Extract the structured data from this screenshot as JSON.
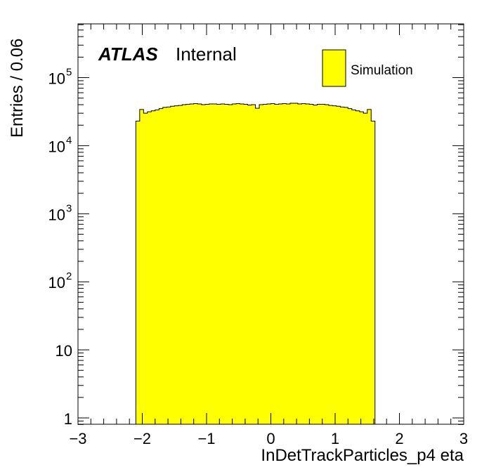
{
  "chart_data": {
    "type": "bar",
    "style": "histogram",
    "xlabel": "InDetTrackParticles_p4 eta",
    "ylabel": "Entries / 0.06",
    "x_ticks": [
      "−3",
      "−2",
      "−1",
      "0",
      "1",
      "2",
      "3"
    ],
    "y_ticks": [
      "1",
      "10",
      "10",
      "10",
      "10",
      "10"
    ],
    "y_tick_exponents": [
      "",
      "",
      "2",
      "3",
      "4",
      "5"
    ],
    "xlim": [
      -3,
      3
    ],
    "ylim": [
      0.8,
      600000
    ],
    "y_scale": "log",
    "experiment": "ATLAS",
    "status": "Internal",
    "legend_position": "top-right",
    "fill_color": "#ffff00",
    "series": [
      {
        "name": "Simulation",
        "bin_width": 0.06,
        "x_start": -2.1,
        "values": [
          23000,
          34000,
          30000,
          31500,
          32500,
          33500,
          35000,
          36500,
          37000,
          38000,
          38500,
          39000,
          40000,
          40500,
          41000,
          41500,
          41000,
          40000,
          40500,
          41000,
          41000,
          40500,
          41000,
          40500,
          40000,
          41000,
          41500,
          41000,
          40500,
          39500,
          40000,
          35500,
          40000,
          40500,
          41000,
          41500,
          40500,
          41000,
          41500,
          41000,
          42000,
          42000,
          41000,
          41500,
          41000,
          40500,
          39500,
          40500,
          40500,
          40000,
          39000,
          38500,
          38000,
          37000,
          36500,
          35000,
          33500,
          32500,
          31500,
          30000,
          34000,
          23000
        ]
      }
    ]
  }
}
